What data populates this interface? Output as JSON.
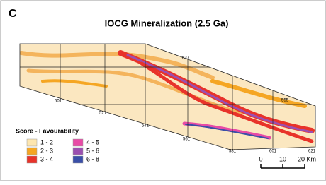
{
  "panel_label": "C",
  "title": "IOCG Mineralization (2.5 Ga)",
  "map": {
    "tile_labels": [
      "501",
      "521",
      "541",
      "561",
      "581",
      "601",
      "621",
      "637",
      "555"
    ]
  },
  "legend": {
    "title": "Score - Favourability",
    "items": [
      "1 - 2",
      "2 - 3",
      "3 - 4",
      "4 - 5",
      "5 - 6",
      "6 - 8"
    ]
  },
  "scale_bar": {
    "labels": [
      "0",
      "10",
      "20 Km"
    ]
  }
}
